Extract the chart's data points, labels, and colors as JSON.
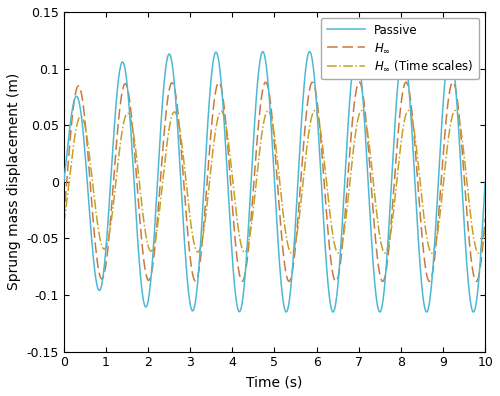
{
  "xlabel": "Time (s)",
  "ylabel": "Sprung mass displacement (m)",
  "xlim": [
    0,
    10
  ],
  "ylim": [
    -0.15,
    0.15
  ],
  "xticks": [
    0,
    1,
    2,
    3,
    4,
    5,
    6,
    7,
    8,
    9,
    10
  ],
  "yticks": [
    -0.15,
    -0.1,
    -0.05,
    0,
    0.05,
    0.1,
    0.15
  ],
  "passive_color": "#4db8d4",
  "hinf_color": "#c87a3e",
  "hinf_ts_color": "#c8a020",
  "freq": 0.9,
  "passive_amp_steady": 0.115,
  "passive_amp_init": 0.095,
  "passive_transient_amp": 0.038,
  "passive_transient_decay": 1.4,
  "hinf_amp": 0.088,
  "hinf_phase_lag": 0.38,
  "hinf_ts_amp": 0.063,
  "hinf_ts_phase_lag": 0.7,
  "background_color": "#ffffff"
}
